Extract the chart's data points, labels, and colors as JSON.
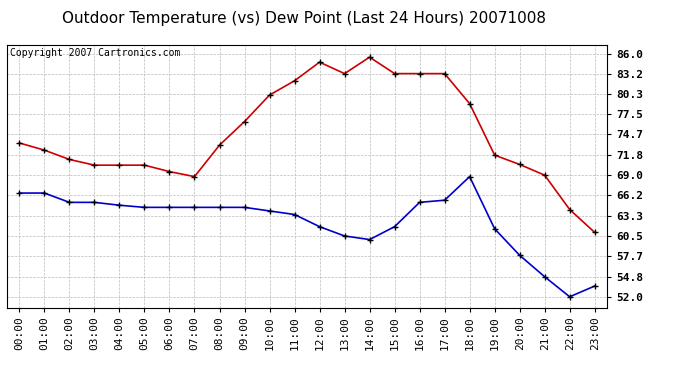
{
  "title": "Outdoor Temperature (vs) Dew Point (Last 24 Hours) 20071008",
  "copyright_text": "Copyright 2007 Cartronics.com",
  "x_labels": [
    "00:00",
    "01:00",
    "02:00",
    "03:00",
    "04:00",
    "05:00",
    "06:00",
    "07:00",
    "08:00",
    "09:00",
    "10:00",
    "11:00",
    "12:00",
    "13:00",
    "14:00",
    "15:00",
    "16:00",
    "17:00",
    "18:00",
    "19:00",
    "20:00",
    "21:00",
    "22:00",
    "23:00"
  ],
  "temp_data": [
    73.5,
    72.5,
    71.2,
    70.4,
    70.4,
    70.4,
    69.5,
    68.8,
    73.2,
    76.5,
    80.2,
    82.2,
    84.8,
    83.2,
    85.5,
    83.2,
    83.2,
    83.2,
    79.0,
    71.8,
    70.5,
    69.0,
    64.2,
    61.0
  ],
  "dew_data": [
    66.5,
    66.5,
    65.2,
    65.2,
    64.8,
    64.5,
    64.5,
    64.5,
    64.5,
    64.5,
    64.0,
    63.5,
    61.8,
    60.5,
    60.0,
    61.8,
    65.2,
    65.5,
    68.8,
    61.5,
    57.8,
    54.8,
    52.0,
    53.5
  ],
  "temp_color": "#cc0000",
  "dew_color": "#0000cc",
  "bg_color": "#ffffff",
  "plot_bg_color": "#ffffff",
  "grid_color": "#bbbbbb",
  "yticks": [
    52.0,
    54.8,
    57.7,
    60.5,
    63.3,
    66.2,
    69.0,
    71.8,
    74.7,
    77.5,
    80.3,
    83.2,
    86.0
  ],
  "ylim_min": 50.5,
  "ylim_max": 87.2,
  "title_fontsize": 11,
  "copyright_fontsize": 7,
  "axis_fontsize": 8,
  "marker_size": 4
}
